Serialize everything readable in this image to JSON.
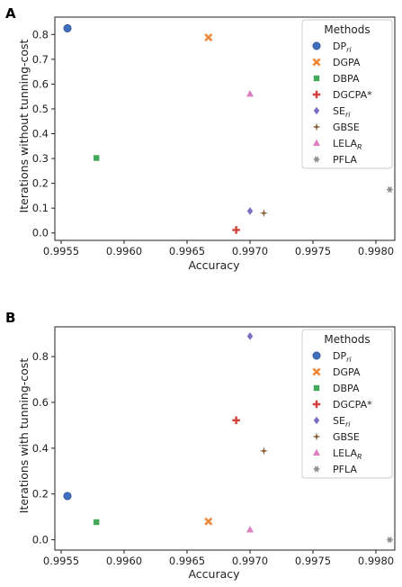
{
  "chart_data": [
    {
      "panel_label": "A",
      "type": "scatter",
      "xlabel": "Accuracy",
      "ylabel": "Iterations without tunning-cost",
      "xlim": [
        0.99545,
        0.99815
      ],
      "ylim": [
        -0.03,
        0.87
      ],
      "xticks": [
        "0.9955",
        "0.9960",
        "0.9965",
        "0.9970",
        "0.9975",
        "0.9980"
      ],
      "yticks": [
        "0.0",
        "0.1",
        "0.2",
        "0.3",
        "0.4",
        "0.5",
        "0.6",
        "0.7",
        "0.8"
      ],
      "legend_title": "Methods",
      "legend_position": "top-right",
      "series": [
        {
          "name": "DP",
          "sub": "ri",
          "marker": "circle",
          "color": "#3f6fbf",
          "x": 0.99555,
          "y": 0.825
        },
        {
          "name": "DGPA",
          "marker": "x",
          "color": "#ef8838",
          "x": 0.99667,
          "y": 0.788
        },
        {
          "name": "DBPA",
          "marker": "square",
          "color": "#43a85a",
          "x": 0.99578,
          "y": 0.302
        },
        {
          "name": "DGCPA*",
          "marker": "plus",
          "color": "#d1403a",
          "x": 0.99689,
          "y": 0.012
        },
        {
          "name": "SE",
          "sub": "ri",
          "marker": "diamond",
          "color": "#7b6dbf",
          "x": 0.997,
          "y": 0.088
        },
        {
          "name": "GBSE",
          "marker": "star",
          "color": "#8c613c",
          "x": 0.99711,
          "y": 0.08
        },
        {
          "name": "LELA",
          "sub": "R",
          "marker": "triangle",
          "color": "#dc7ec0",
          "x": 0.997,
          "y": 0.56
        },
        {
          "name": "PFLA",
          "marker": "asterisk",
          "color": "#8c8c8c",
          "x": 0.99811,
          "y": 0.175
        }
      ]
    },
    {
      "panel_label": "B",
      "type": "scatter",
      "xlabel": "Accuracy",
      "ylabel": "Iterations with tunning-cost",
      "xlim": [
        0.99545,
        0.99815
      ],
      "ylim": [
        -0.045,
        0.93
      ],
      "xticks": [
        "0.9955",
        "0.9960",
        "0.9965",
        "0.9970",
        "0.9975",
        "0.9980"
      ],
      "yticks": [
        "0.0",
        "0.2",
        "0.4",
        "0.6",
        "0.8"
      ],
      "legend_title": "Methods",
      "legend_position": "top-right",
      "series": [
        {
          "name": "DP",
          "sub": "ri",
          "marker": "circle",
          "color": "#3f6fbf",
          "x": 0.99555,
          "y": 0.191
        },
        {
          "name": "DGPA",
          "marker": "x",
          "color": "#ef8838",
          "x": 0.99667,
          "y": 0.08
        },
        {
          "name": "DBPA",
          "marker": "square",
          "color": "#43a85a",
          "x": 0.99578,
          "y": 0.077
        },
        {
          "name": "DGCPA*",
          "marker": "plus",
          "color": "#d1403a",
          "x": 0.99689,
          "y": 0.522
        },
        {
          "name": "SE",
          "sub": "ri",
          "marker": "diamond",
          "color": "#7b6dbf",
          "x": 0.997,
          "y": 0.889
        },
        {
          "name": "GBSE",
          "marker": "star",
          "color": "#8c613c",
          "x": 0.99711,
          "y": 0.388
        },
        {
          "name": "LELA",
          "sub": "R",
          "marker": "triangle",
          "color": "#dc7ec0",
          "x": 0.997,
          "y": 0.044
        },
        {
          "name": "PFLA",
          "marker": "asterisk",
          "color": "#8c8c8c",
          "x": 0.99811,
          "y": 0.0
        }
      ]
    }
  ]
}
